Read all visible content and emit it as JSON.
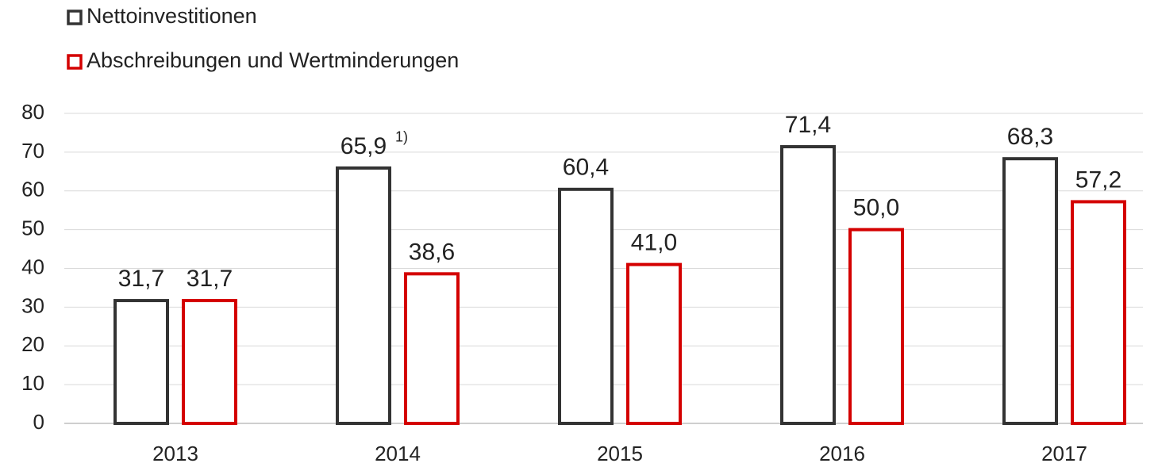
{
  "chart_data": {
    "type": "bar",
    "categories": [
      "2013",
      "2014",
      "2015",
      "2016",
      "2017"
    ],
    "series": [
      {
        "name": "Nettoinvestitionen",
        "color": "#333333",
        "values": [
          31.7,
          65.9,
          60.4,
          71.4,
          68.3
        ],
        "value_labels": [
          "31,7",
          "65,9",
          "60,4",
          "71,4",
          "68,3"
        ]
      },
      {
        "name": "Abschreibungen und Wertminderungen",
        "color": "#d40000",
        "values": [
          31.7,
          38.6,
          41.0,
          50.0,
          57.2
        ],
        "value_labels": [
          "31,7",
          "38,6",
          "41,0",
          "50,0",
          "57,2"
        ]
      }
    ],
    "annotations": [
      {
        "text": "1)",
        "series": 0,
        "index": 1
      }
    ],
    "ylim": [
      0,
      80
    ],
    "yticks": [
      0,
      10,
      20,
      30,
      40,
      50,
      60,
      70,
      80
    ],
    "grid": true,
    "legend": "top-left"
  }
}
